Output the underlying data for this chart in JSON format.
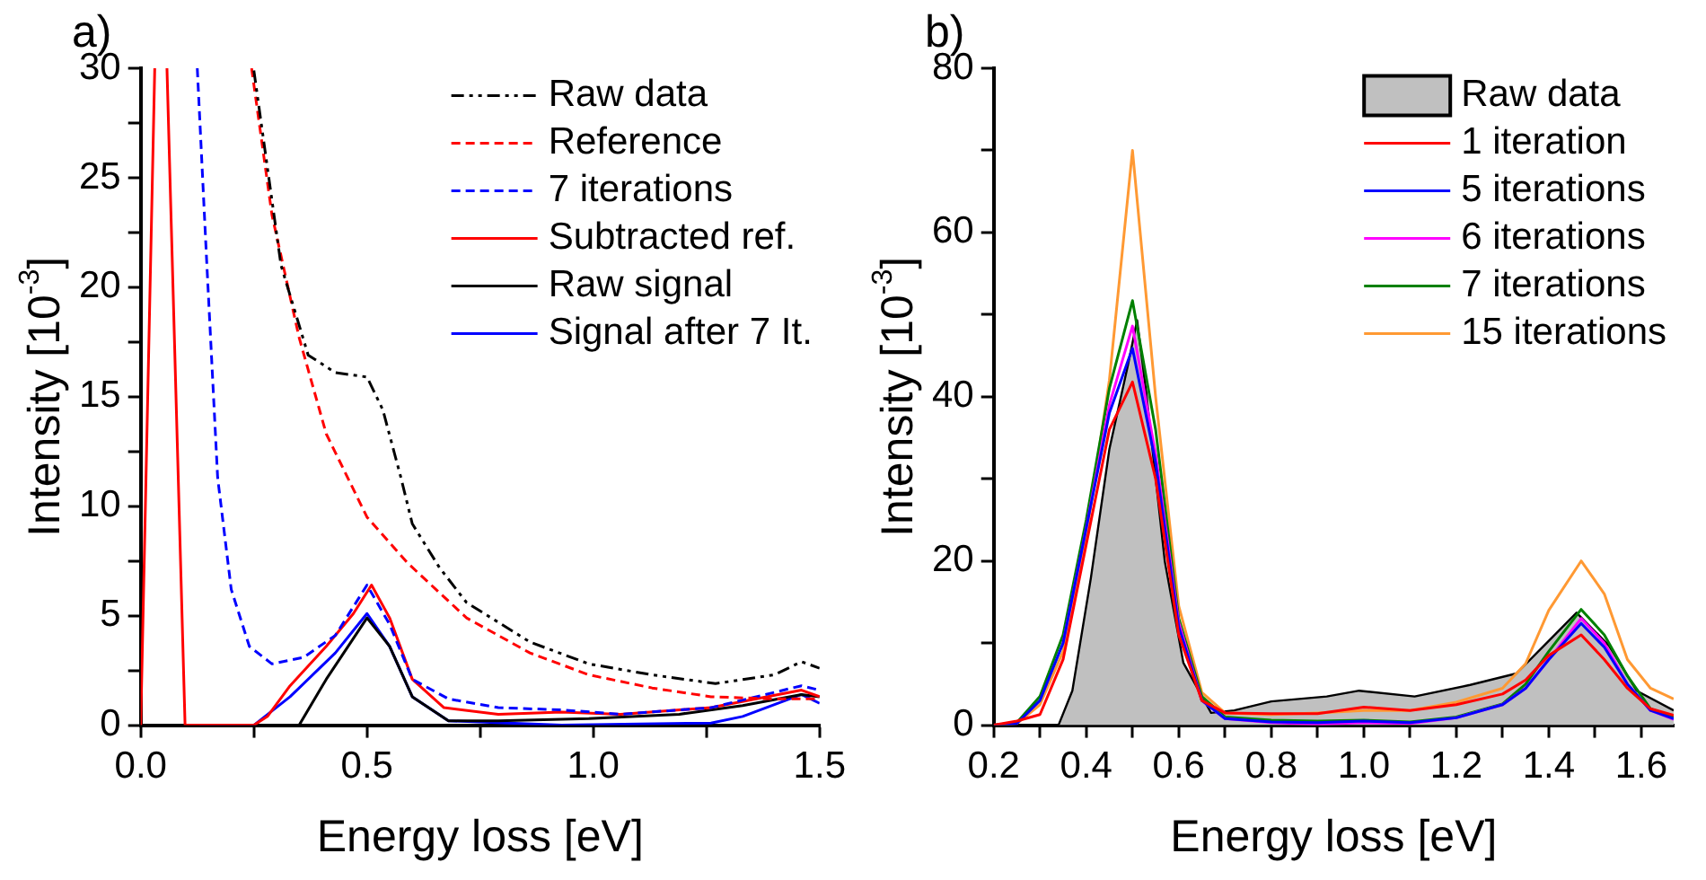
{
  "chart_data": [
    {
      "type": "line",
      "title": "a)",
      "xlabel": "Energy loss [eV]",
      "ylabel": "Intensity [10$^{-3}$]",
      "xlim": [
        0,
        1.5
      ],
      "ylim": [
        0,
        30
      ],
      "xticks": [
        {
          "value": 0,
          "label": "0.0"
        },
        {
          "value": 0.25,
          "label": null
        },
        {
          "value": 0.5,
          "label": "0.5"
        },
        {
          "value": 0.75,
          "label": null
        },
        {
          "value": 1,
          "label": "1.0"
        },
        {
          "value": 1.25,
          "label": null
        },
        {
          "value": 1.5,
          "label": "1.5"
        }
      ],
      "yticks": [
        0,
        {
          "value": 2.5,
          "label": null
        },
        5,
        {
          "value": 7.5,
          "label": null
        },
        10,
        {
          "value": 12.5,
          "label": null
        },
        15,
        {
          "value": 17.5,
          "label": null
        },
        20,
        {
          "value": 22.5,
          "label": null
        },
        25,
        {
          "value": 27.5,
          "label": null
        },
        30
      ],
      "legend": "top right",
      "series": [
        {
          "name": "Raw data",
          "color": "#000000",
          "line_style": "dashdot",
          "x": [
            0.25,
            0.31,
            0.37,
            0.43,
            0.5,
            0.535,
            0.575,
            0.6,
            0.66,
            0.72,
            0.86,
            0.99,
            1.13,
            1.27,
            1.4,
            1.46,
            1.5
          ],
          "values": [
            29.9,
            21,
            16.9,
            16.1,
            15.9,
            14.4,
            11.3,
            9.2,
            7.2,
            5.6,
            3.8,
            2.8,
            2.3,
            1.9,
            2.3,
            2.9,
            2.6
          ]
        },
        {
          "name": "Reference",
          "color": "#ff0000",
          "line_style": "dashed",
          "x": [
            0.245,
            0.29,
            0.35,
            0.41,
            0.5,
            0.59,
            0.72,
            0.86,
            0.99,
            1.13,
            1.26,
            1.4,
            1.5
          ],
          "values": [
            30,
            23.3,
            17.7,
            13.3,
            9.5,
            7.4,
            4.9,
            3.3,
            2.3,
            1.7,
            1.3,
            1.2,
            1.2
          ]
        },
        {
          "name": "7 iterations",
          "color": "#0000ff",
          "line_style": "dashed",
          "x": [
            0.125,
            0.145,
            0.17,
            0.2,
            0.24,
            0.29,
            0.36,
            0.43,
            0.5,
            0.55,
            0.6,
            0.68,
            0.79,
            0.93,
            1.06,
            1.26,
            1.46,
            1.5
          ],
          "values": [
            30,
            21.5,
            11.3,
            6.2,
            3.6,
            2.8,
            3.1,
            4.1,
            6.4,
            4.6,
            2.1,
            1.2,
            0.8,
            0.7,
            0.5,
            0.8,
            1.8,
            1.6
          ]
        },
        {
          "name": "Subtracted ref.",
          "color": "#ff0000",
          "line_style": "solid",
          "x": [
            0,
            0.031,
            0.045,
            0.058,
            0.098,
            0.25,
            0.28,
            0.33,
            0.41,
            0.47,
            0.51,
            0.55,
            0.6,
            0.67,
            0.79,
            0.93,
            1.06,
            1.26,
            1.46,
            1.5
          ],
          "values": [
            0,
            30,
            null,
            30,
            0,
            0,
            0.4,
            1.8,
            3.6,
            5.1,
            6.4,
            4.9,
            2.1,
            0.8,
            0.5,
            0.6,
            0.5,
            0.8,
            1.6,
            1.3
          ]
        },
        {
          "name": "Raw signal",
          "color": "#000000",
          "line_style": "solid",
          "x": [
            0.13,
            0.35,
            0.41,
            0.5,
            0.55,
            0.6,
            0.68,
            0.79,
            0.99,
            1.19,
            1.33,
            1.46,
            1.5
          ],
          "values": [
            0,
            0,
            2.1,
            4.9,
            3.6,
            1.3,
            0.2,
            0.2,
            0.3,
            0.5,
            0.9,
            1.4,
            1.3
          ]
        },
        {
          "name": "Signal after 7 It.",
          "color": "#0000ff",
          "line_style": "solid",
          "x": [
            0.13,
            0.25,
            0.33,
            0.43,
            0.5,
            0.55,
            0.6,
            0.68,
            0.93,
            1.26,
            1.33,
            1.46,
            1.5
          ],
          "values": [
            0,
            0,
            1.3,
            3.3,
            5.1,
            3.6,
            1.3,
            0.2,
            0,
            0.1,
            0.4,
            1.4,
            1
          ]
        }
      ]
    },
    {
      "type": "line",
      "title": "b)",
      "xlabel": "Energy loss [eV]",
      "ylabel": "Intensity [10$^{-3}$]",
      "xlim": [
        0.2,
        1.67
      ],
      "ylim": [
        0,
        80
      ],
      "xticks": [
        {
          "value": 0.2,
          "label": "0.2"
        },
        {
          "value": 0.3,
          "label": null
        },
        {
          "value": 0.4,
          "label": "0.4"
        },
        {
          "value": 0.5,
          "label": null
        },
        {
          "value": 0.6,
          "label": "0.6"
        },
        {
          "value": 0.7,
          "label": null
        },
        {
          "value": 0.8,
          "label": "0.8"
        },
        {
          "value": 0.9,
          "label": null
        },
        {
          "value": 1,
          "label": "1.0"
        },
        {
          "value": 1.1,
          "label": null
        },
        {
          "value": 1.2,
          "label": "1.2"
        },
        {
          "value": 1.3,
          "label": null
        },
        {
          "value": 1.4,
          "label": "1.4"
        },
        {
          "value": 1.5,
          "label": null
        },
        {
          "value": 1.6,
          "label": "1.6"
        }
      ],
      "yticks": [
        0,
        {
          "value": 10,
          "label": null
        },
        20,
        {
          "value": 30,
          "label": null
        },
        40,
        {
          "value": 50,
          "label": null
        },
        60,
        {
          "value": 70,
          "label": null
        },
        80
      ],
      "legend": "top right",
      "x": [
        0.2,
        0.25,
        0.3,
        0.35,
        0.4,
        0.45,
        0.5,
        0.55,
        0.6,
        0.65,
        0.7,
        0.8,
        0.9,
        1.0,
        1.1,
        1.2,
        1.3,
        1.35,
        1.4,
        1.47,
        1.52,
        1.57,
        1.62,
        1.67
      ],
      "series": [
        {
          "name": "Raw data",
          "type": "area",
          "color": "#c0c0c0",
          "x": [
            0.2,
            0.34,
            0.37,
            0.41,
            0.45,
            0.49,
            0.51,
            0.53,
            0.57,
            0.61,
            0.67,
            0.72,
            0.8,
            0.92,
            0.99,
            1.11,
            1.23,
            1.33,
            1.39,
            1.46,
            1.53,
            1.59,
            1.67
          ],
          "values": [
            0,
            0,
            4.2,
            17.9,
            33.6,
            43.8,
            49.3,
            40.4,
            19.9,
            7.6,
            1.5,
            1.8,
            2.9,
            3.5,
            4.2,
            3.5,
            4.9,
            6.3,
            9.7,
            13.7,
            9.7,
            4.2,
            1.8
          ]
        },
        {
          "name": "1 iteration",
          "color": "#ff0000",
          "values": [
            0,
            0.5,
            1.3,
            8,
            22,
            36,
            41.8,
            30,
            11,
            3,
            1.5,
            1.4,
            1.4,
            2.2,
            1.8,
            2.5,
            3.8,
            5.5,
            8.5,
            11,
            8,
            4.5,
            2,
            1.2
          ]
        },
        {
          "name": "5 iterations",
          "color": "#0000ff",
          "values": [
            0,
            0.2,
            3,
            10,
            24,
            38,
            45.9,
            32,
            12,
            3,
            0.8,
            0.4,
            0.3,
            0.5,
            0.3,
            0.9,
            2.5,
            4.5,
            8,
            12.4,
            9.5,
            5,
            1.8,
            0.8
          ]
        },
        {
          "name": "6 iterations",
          "color": "#ff00ff",
          "values": [
            null,
            null,
            null,
            10,
            24,
            39,
            48.6,
            33,
            12.5,
            3,
            0.8,
            0.3,
            0.1,
            0.3,
            0.2,
            0.9,
            2.5,
            4.5,
            8,
            13,
            10,
            5,
            1.8,
            0.7
          ]
        },
        {
          "name": "7 iterations",
          "color": "#008000",
          "values": [
            0,
            0.3,
            3.5,
            11,
            25,
            41,
            51.7,
            36,
            13,
            3.5,
            1,
            0.6,
            0.5,
            0.6,
            0.4,
            1,
            2.6,
            5,
            9,
            14.1,
            11,
            6,
            2,
            1
          ]
        },
        {
          "name": "15 iterations",
          "color": "#ff9933",
          "values": [
            0,
            0.2,
            2.5,
            9,
            23,
            42,
            70,
            40,
            14.5,
            4,
            1.5,
            1.3,
            1.5,
            1.8,
            1.8,
            2.8,
            4.5,
            7.5,
            14,
            20,
            16,
            8,
            4.5,
            3.2
          ]
        }
      ]
    }
  ]
}
